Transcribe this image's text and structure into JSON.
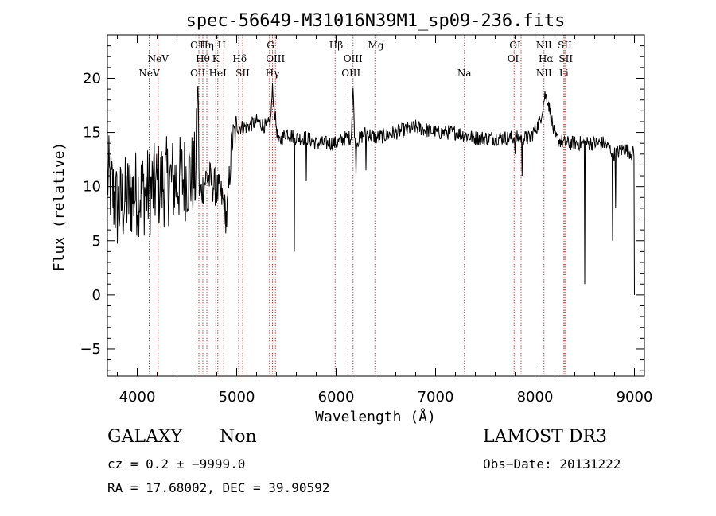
{
  "chart_data": {
    "type": "line",
    "title": "spec-56649-M31016N39M1_sp09-236.fits",
    "xlabel": "Wavelength (Å)",
    "ylabel": "Flux (relative)",
    "xlim": [
      3700,
      9100
    ],
    "ylim": [
      -7.5,
      24
    ],
    "x_ticks": [
      4000,
      5000,
      6000,
      7000,
      8000,
      9000
    ],
    "y_ticks": [
      -5,
      0,
      5,
      10,
      15,
      20
    ],
    "x_tick_labels": [
      "4000",
      "5000",
      "6000",
      "7000",
      "8000",
      "9000"
    ],
    "y_tick_labels": [
      "−5",
      "0",
      "5",
      "10",
      "15",
      "20"
    ],
    "line_color": "#000000",
    "marker_color": "#b22222",
    "series": [
      {
        "name": "flux",
        "anchors": [
          [
            3700,
            11
          ],
          [
            3800,
            8
          ],
          [
            3900,
            9
          ],
          [
            4000,
            9.5
          ],
          [
            4100,
            9.5
          ],
          [
            4200,
            10
          ],
          [
            4300,
            10.5
          ],
          [
            4400,
            10.5
          ],
          [
            4500,
            11
          ],
          [
            4590,
            11
          ],
          [
            4610,
            20
          ],
          [
            4625,
            9
          ],
          [
            4700,
            11
          ],
          [
            4780,
            10
          ],
          [
            4850,
            9
          ],
          [
            4900,
            7
          ],
          [
            4950,
            14
          ],
          [
            5000,
            15.5
          ],
          [
            5100,
            15.5
          ],
          [
            5200,
            16
          ],
          [
            5300,
            15.5
          ],
          [
            5340,
            16
          ],
          [
            5360,
            19
          ],
          [
            5380,
            17
          ],
          [
            5420,
            14
          ],
          [
            5500,
            15
          ],
          [
            5600,
            14.5
          ],
          [
            5700,
            14.5
          ],
          [
            5800,
            14
          ],
          [
            5900,
            14
          ],
          [
            6000,
            14
          ],
          [
            6100,
            14.5
          ],
          [
            6150,
            14.5
          ],
          [
            6170,
            19
          ],
          [
            6190,
            14
          ],
          [
            6300,
            15
          ],
          [
            6400,
            14.5
          ],
          [
            6600,
            15
          ],
          [
            6800,
            15.5
          ],
          [
            7000,
            15
          ],
          [
            7200,
            15
          ],
          [
            7400,
            14.5
          ],
          [
            7600,
            14.5
          ],
          [
            7800,
            14.5
          ],
          [
            7950,
            14.5
          ],
          [
            8050,
            16
          ],
          [
            8100,
            18.5
          ],
          [
            8130,
            18
          ],
          [
            8200,
            14.5
          ],
          [
            8300,
            14
          ],
          [
            8500,
            14
          ],
          [
            8700,
            14
          ],
          [
            8800,
            13
          ],
          [
            8900,
            13.5
          ],
          [
            9000,
            13
          ]
        ],
        "spikes": [
          [
            5580,
            4
          ],
          [
            5700,
            10.5
          ],
          [
            6200,
            11
          ],
          [
            6300,
            11.5
          ],
          [
            7800,
            13
          ],
          [
            7870,
            11
          ],
          [
            8500,
            1
          ],
          [
            8780,
            5
          ],
          [
            8810,
            8
          ],
          [
            9000,
            0
          ]
        ]
      }
    ],
    "lines_upper": [
      {
        "label": "OII",
        "x": 4610,
        "row": 0
      },
      {
        "label": "Hη",
        "x": 4700,
        "row": 0
      },
      {
        "label": "H",
        "x": 4850,
        "row": 0
      },
      {
        "label": "G",
        "x": 5340,
        "row": 0
      },
      {
        "label": "Hβ",
        "x": 6000,
        "row": 0
      },
      {
        "label": "Mg",
        "x": 6400,
        "row": 0
      },
      {
        "label": "OI",
        "x": 7800,
        "row": 0
      },
      {
        "label": "NII",
        "x": 8090,
        "row": 0
      },
      {
        "label": "SII",
        "x": 8300,
        "row": 0
      },
      {
        "label": "NeV",
        "x": 4210,
        "row": 1
      },
      {
        "label": "Hθ",
        "x": 4660,
        "row": 1
      },
      {
        "label": "K",
        "x": 4790,
        "row": 1
      },
      {
        "label": "Hδ",
        "x": 5030,
        "row": 1
      },
      {
        "label": "OIII",
        "x": 5390,
        "row": 1
      },
      {
        "label": "OIII",
        "x": 6170,
        "row": 1
      },
      {
        "label": "OI",
        "x": 7780,
        "row": 1
      },
      {
        "label": "Hα",
        "x": 8110,
        "row": 1
      },
      {
        "label": "SII",
        "x": 8310,
        "row": 1
      },
      {
        "label": "NeV",
        "x": 4120,
        "row": 2
      },
      {
        "label": "OII",
        "x": 4610,
        "row": 2
      },
      {
        "label": "HeI",
        "x": 4810,
        "row": 2
      },
      {
        "label": "SII",
        "x": 5060,
        "row": 2
      },
      {
        "label": "Hγ",
        "x": 5360,
        "row": 2
      },
      {
        "label": "OIII",
        "x": 6150,
        "row": 2
      },
      {
        "label": "Na",
        "x": 7290,
        "row": 2
      },
      {
        "label": "NII",
        "x": 8090,
        "row": 2
      },
      {
        "label": "Li",
        "x": 8290,
        "row": 2
      }
    ],
    "marker_lines": [
      4120,
      4210,
      4600,
      4620,
      4660,
      4700,
      4790,
      4810,
      4870,
      5020,
      5060,
      5330,
      5360,
      5390,
      5990,
      6120,
      6170,
      6390,
      7290,
      7790,
      7860,
      8090,
      8120,
      8290,
      8300,
      8310
    ]
  },
  "info": {
    "object_type": "GALAXY",
    "subclass": "Non",
    "survey": "LAMOST DR3",
    "cz": "cz = 0.2 ± −9999.0",
    "obs_date": "Obs−Date: 20131222",
    "radec": "RA =  17.68002, DEC =  39.90592"
  }
}
